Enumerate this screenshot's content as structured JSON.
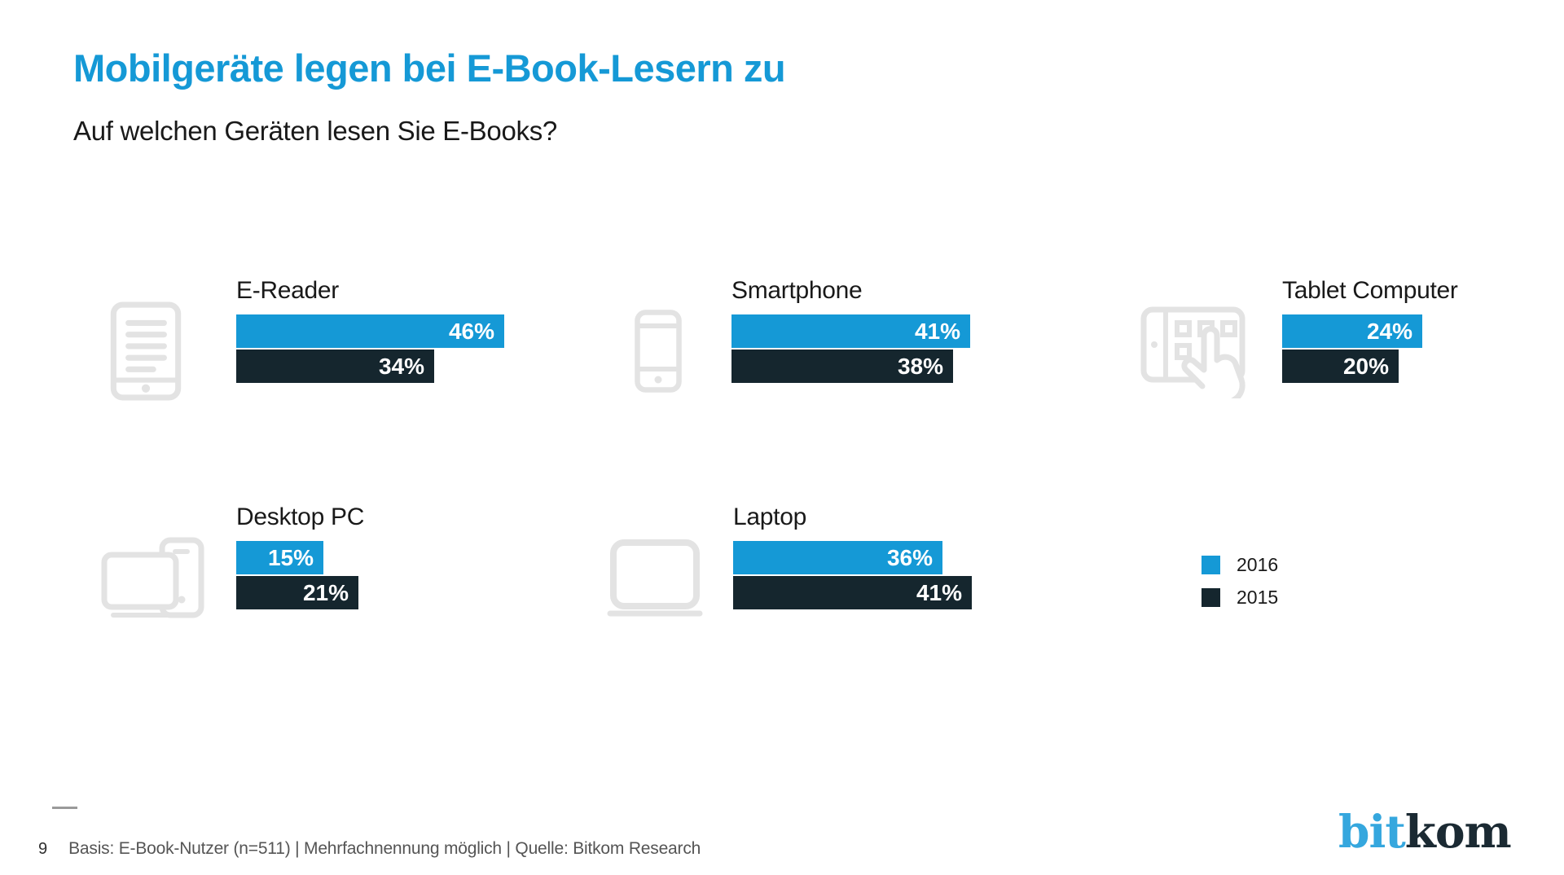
{
  "title": "Mobilgeräte legen bei E-Book-Lesern zu",
  "subtitle": "Auf welchen Geräten lesen Sie E-Books?",
  "chart_data": {
    "type": "bar",
    "orientation": "horizontal",
    "unit": "%",
    "series": [
      "2016",
      "2015"
    ],
    "groups": [
      {
        "label": "E-Reader",
        "icon": "e-reader",
        "values": [
          46,
          34
        ]
      },
      {
        "label": "Smartphone",
        "icon": "smartphone",
        "values": [
          41,
          38
        ]
      },
      {
        "label": "Tablet Computer",
        "icon": "tablet-computer",
        "values": [
          24,
          20
        ]
      },
      {
        "label": "Desktop PC",
        "icon": "desktop-pc",
        "values": [
          15,
          21
        ]
      },
      {
        "label": "Laptop",
        "icon": "laptop",
        "values": [
          36,
          41
        ]
      }
    ],
    "legend": [
      {
        "label": "2016",
        "color": "#1599d6"
      },
      {
        "label": "2015",
        "color": "#15262e"
      }
    ],
    "value_range": [
      0,
      100
    ],
    "grid": false,
    "legend_position": "middle-right"
  },
  "colors": {
    "accent_blue": "#1599d6",
    "dark_navy": "#15262e",
    "icon_gray": "#e3e3e3",
    "title_blue": "#1599d6"
  },
  "footer": {
    "page_number": "9",
    "source_text": "Basis: E-Book-Nutzer (n=511) | Mehrfachnennung möglich | Quelle: Bitkom Research"
  },
  "logo": {
    "part1": "bit",
    "part2": "kom"
  }
}
